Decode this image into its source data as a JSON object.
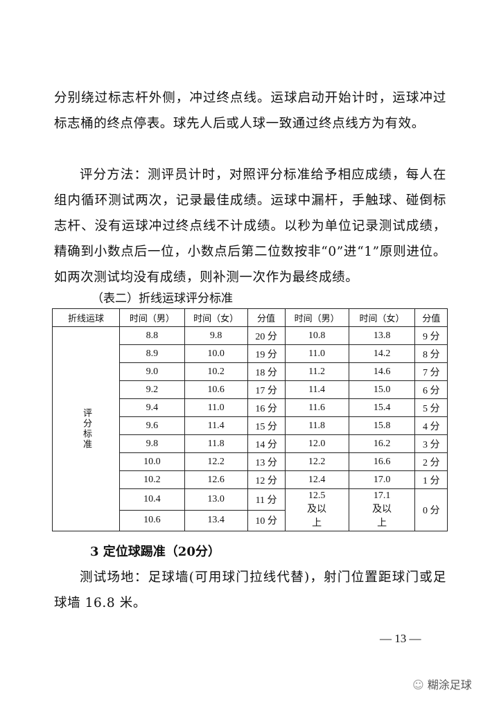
{
  "paragraphs": [
    "分别绕过标志杆外侧，冲过终点线。运球启动开始计时，运球冲过标志桶的终点停表。球先人后或人球一致通过终点线方为有效。",
    "评分方法：测评员计时，对照评分标准给予相应成绩，每人在组内循环测试两次，记录最佳成绩。运球中漏杆，手触球、碰倒标志杆、没有运球冲过终点线不计成绩。以秒为单位记录测试成绩，精确到小数点后一位，小数点后第二位数按非“0”进“1”原则进位。如两次测试均没有成绩，则补测一次作为最终成绩。"
  ],
  "table": {
    "caption": "（表二）折线运球评分标准",
    "headers": [
      "折线运球",
      "时间（男）",
      "时间（女）",
      "分值",
      "时间（男）",
      "时间（女）",
      "分值"
    ],
    "row_label": "评分标准",
    "rows": [
      [
        "8.8",
        "9.8",
        "20 分",
        "10.8",
        "13.8",
        "9 分"
      ],
      [
        "8.9",
        "10.0",
        "19 分",
        "11.0",
        "14.2",
        "8 分"
      ],
      [
        "9.0",
        "10.2",
        "18 分",
        "11.2",
        "14.6",
        "7 分"
      ],
      [
        "9.2",
        "10.6",
        "17 分",
        "11.4",
        "15.0",
        "6 分"
      ],
      [
        "9.4",
        "11.0",
        "16 分",
        "11.6",
        "15.4",
        "5 分"
      ],
      [
        "9.6",
        "11.4",
        "15 分",
        "11.8",
        "15.8",
        "4 分"
      ],
      [
        "9.8",
        "11.8",
        "14 分",
        "12.0",
        "16.2",
        "3 分"
      ],
      [
        "10.0",
        "12.2",
        "13 分",
        "12.2",
        "16.6",
        "2 分"
      ],
      [
        "10.2",
        "12.6",
        "12 分",
        "12.4",
        "17.0",
        "1 分"
      ],
      [
        "10.4",
        "13.0",
        "11 分"
      ],
      [
        "10.6",
        "13.4",
        "10 分"
      ]
    ],
    "merged_last": [
      "12.5 及以上",
      "17.1 及以上",
      "0 分"
    ]
  },
  "section_heading": "3  定位球踢准（20分）",
  "paragraph3": "测试场地：足球墙(可用球门拉线代替)，射门位置距球门或足球墙 16.8 米。",
  "page_number": "— 13 —",
  "watermark": "糊涂足球"
}
